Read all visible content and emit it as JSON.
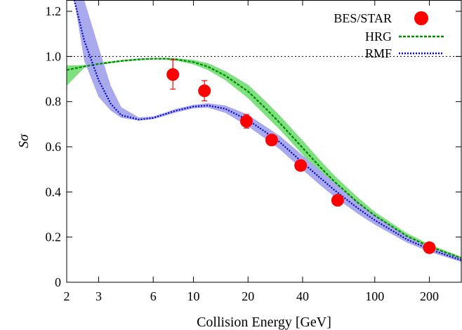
{
  "chart_data": {
    "type": "line",
    "title": "",
    "xlabel": "Collision Energy [GeV]",
    "ylabel": "Sσ",
    "xscale": "log",
    "xlim": [
      2,
      300
    ],
    "ylim": [
      0,
      1.25
    ],
    "x_ticks": [
      2,
      3,
      6,
      10,
      20,
      40,
      100,
      200
    ],
    "x_tick_labels": [
      "2",
      "3",
      "6",
      "10",
      "20",
      "40",
      "100",
      "200"
    ],
    "y_ticks": [
      0,
      0.2,
      0.4,
      0.6,
      0.8,
      1.0,
      1.2
    ],
    "y_tick_labels": [
      "0",
      "0.2",
      "0.4",
      "0.6",
      "0.8",
      "1.0",
      "1.2"
    ],
    "reference_line_y": 1.0,
    "legend_position": "top-right",
    "series": [
      {
        "name": "BES/STAR",
        "kind": "points",
        "color": "#ff0000",
        "points": [
          {
            "x": 7.7,
            "y": 0.92,
            "err": 0.065
          },
          {
            "x": 11.5,
            "y": 0.848,
            "err": 0.045
          },
          {
            "x": 19.6,
            "y": 0.713,
            "err": 0.03
          },
          {
            "x": 27,
            "y": 0.63,
            "err": 0.015
          },
          {
            "x": 39,
            "y": 0.517,
            "err": 0.012
          },
          {
            "x": 62.4,
            "y": 0.363,
            "err": 0.01
          },
          {
            "x": 200,
            "y": 0.153,
            "err": 0.01
          }
        ]
      },
      {
        "name": "HRG",
        "kind": "line",
        "color": "#008800",
        "band_color": "#7ee07e",
        "x": [
          2,
          2.5,
          3,
          4,
          5,
          6,
          7,
          8,
          10,
          12,
          15,
          20,
          25,
          30,
          40,
          50,
          60,
          80,
          100,
          150,
          200,
          300
        ],
        "y": [
          0.94,
          0.956,
          0.967,
          0.98,
          0.987,
          0.99,
          0.99,
          0.987,
          0.975,
          0.955,
          0.915,
          0.845,
          0.77,
          0.705,
          0.595,
          0.51,
          0.445,
          0.355,
          0.295,
          0.205,
          0.158,
          0.107
        ],
        "band_low": [
          0.87,
          0.95,
          0.962,
          0.976,
          0.983,
          0.987,
          0.986,
          0.982,
          0.965,
          0.94,
          0.895,
          0.815,
          0.738,
          0.675,
          0.565,
          0.48,
          0.42,
          0.335,
          0.278,
          0.192,
          0.148,
          0.1
        ],
        "band_high": [
          0.96,
          0.962,
          0.972,
          0.984,
          0.991,
          0.993,
          0.994,
          0.992,
          0.985,
          0.97,
          0.935,
          0.875,
          0.802,
          0.738,
          0.628,
          0.54,
          0.472,
          0.378,
          0.312,
          0.218,
          0.168,
          0.113
        ]
      },
      {
        "name": "RMF",
        "kind": "line",
        "color": "#0000cc",
        "band_color": "#a9a9ee",
        "x": [
          2.2,
          2.5,
          3,
          3.5,
          4,
          5,
          6,
          7,
          8,
          10,
          12,
          15,
          20,
          25,
          30,
          40,
          50,
          60,
          80,
          100,
          150,
          200,
          300
        ],
        "y": [
          1.25,
          1.07,
          0.895,
          0.79,
          0.74,
          0.72,
          0.728,
          0.745,
          0.76,
          0.778,
          0.783,
          0.768,
          0.718,
          0.665,
          0.62,
          0.53,
          0.462,
          0.408,
          0.33,
          0.275,
          0.19,
          0.146,
          0.098
        ],
        "band_low": [
          1.25,
          0.98,
          0.82,
          0.76,
          0.728,
          0.716,
          0.722,
          0.738,
          0.752,
          0.77,
          0.773,
          0.75,
          0.69,
          0.635,
          0.588,
          0.498,
          0.43,
          0.378,
          0.305,
          0.255,
          0.176,
          0.135,
          0.09
        ],
        "band_high": [
          1.25,
          1.25,
          1.04,
          0.87,
          0.775,
          0.73,
          0.734,
          0.752,
          0.768,
          0.786,
          0.793,
          0.783,
          0.742,
          0.69,
          0.648,
          0.562,
          0.495,
          0.44,
          0.358,
          0.298,
          0.205,
          0.158,
          0.106
        ]
      }
    ]
  }
}
